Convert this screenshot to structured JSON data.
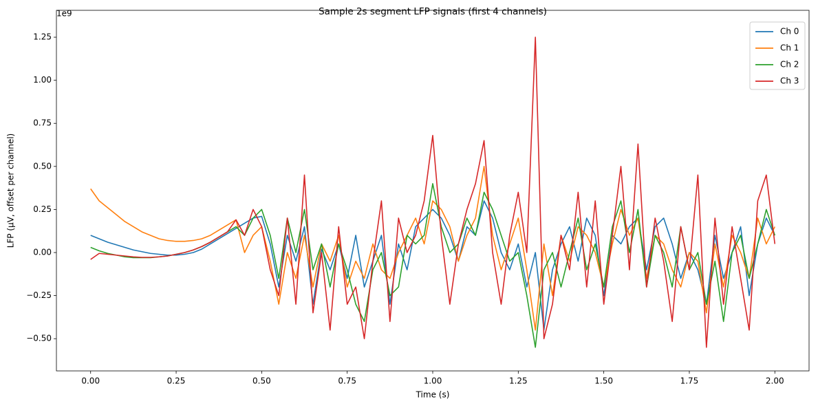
{
  "chart_data": {
    "type": "line",
    "title": "Sample 2s segment LFP signals (first 4 channels)",
    "x_label": "Time (s)",
    "y_label": "LFP (µV, offset per channel)",
    "y_offset_label": "1e9",
    "legend": "upper right",
    "xlim": [
      -0.1,
      2.1
    ],
    "ylim": [
      -0.687,
      1.406
    ],
    "xticks": [
      {
        "value": 0,
        "label": "0.00"
      },
      {
        "value": 0.25,
        "label": "0.25"
      },
      {
        "value": 0.5,
        "label": "0.50"
      },
      {
        "value": 0.75,
        "label": "0.75"
      },
      {
        "value": 1,
        "label": "1.00"
      },
      {
        "value": 1.25,
        "label": "1.25"
      },
      {
        "value": 1.5,
        "label": "1.50"
      },
      {
        "value": 1.75,
        "label": "1.75"
      },
      {
        "value": 2,
        "label": "2.00"
      }
    ],
    "yticks": [
      {
        "value": -0.5,
        "label": "−0.50"
      },
      {
        "value": -0.25,
        "label": "−0.25"
      },
      {
        "value": 0,
        "label": "0.00"
      },
      {
        "value": 0.25,
        "label": "0.25"
      },
      {
        "value": 0.5,
        "label": "0.50"
      },
      {
        "value": 0.75,
        "label": "0.75"
      },
      {
        "value": 1,
        "label": "1.00"
      },
      {
        "value": 1.25,
        "label": "1.25"
      }
    ],
    "x": [
      0,
      0.025,
      0.05,
      0.075,
      0.1,
      0.125,
      0.15,
      0.175,
      0.2,
      0.225,
      0.25,
      0.275,
      0.3,
      0.325,
      0.35,
      0.375,
      0.4,
      0.425,
      0.45,
      0.475,
      0.5,
      0.525,
      0.55,
      0.575,
      0.6,
      0.625,
      0.65,
      0.675,
      0.7,
      0.725,
      0.75,
      0.775,
      0.8,
      0.825,
      0.85,
      0.875,
      0.9,
      0.925,
      0.95,
      0.975,
      1,
      1.025,
      1.05,
      1.075,
      1.1,
      1.125,
      1.15,
      1.175,
      1.2,
      1.225,
      1.25,
      1.275,
      1.3,
      1.325,
      1.35,
      1.375,
      1.4,
      1.425,
      1.45,
      1.475,
      1.5,
      1.525,
      1.55,
      1.575,
      1.6,
      1.625,
      1.65,
      1.675,
      1.7,
      1.725,
      1.75,
      1.775,
      1.8,
      1.825,
      1.85,
      1.875,
      1.9,
      1.925,
      1.95,
      1.975,
      2
    ],
    "series": [
      {
        "name": "Ch 0",
        "color": "#1f77b4",
        "values": [
          0.1,
          0.08,
          0.06,
          0.045,
          0.03,
          0.015,
          0.005,
          -0.005,
          -0.01,
          -0.015,
          -0.015,
          -0.01,
          0,
          0.02,
          0.05,
          0.08,
          0.11,
          0.14,
          0.17,
          0.2,
          0.21,
          0.05,
          -0.2,
          0.1,
          -0.05,
          0.15,
          -0.3,
          0.02,
          -0.1,
          0.05,
          -0.15,
          0.1,
          -0.2,
          -0.05,
          0.1,
          -0.3,
          0.05,
          -0.1,
          0.15,
          0.2,
          0.25,
          0.2,
          0.1,
          -0.05,
          0.15,
          0.1,
          0.3,
          0.2,
          0,
          -0.1,
          0.05,
          -0.2,
          0,
          -0.45,
          -0.1,
          0.05,
          0.15,
          -0.05,
          0.2,
          0.1,
          -0.25,
          0.1,
          0.05,
          0.15,
          0.2,
          -0.1,
          0.15,
          0.2,
          0.05,
          -0.15,
          0,
          -0.1,
          -0.3,
          0.1,
          -0.15,
          0,
          0.15,
          -0.25,
          0.05,
          0.2,
          0.1
        ]
      },
      {
        "name": "Ch 1",
        "color": "#ff7f0e",
        "values": [
          0.37,
          0.3,
          0.26,
          0.22,
          0.18,
          0.15,
          0.12,
          0.1,
          0.08,
          0.07,
          0.065,
          0.065,
          0.07,
          0.08,
          0.1,
          0.13,
          0.16,
          0.19,
          0,
          0.1,
          0.15,
          -0.05,
          -0.3,
          0,
          -0.15,
          0.1,
          -0.2,
          0.05,
          -0.05,
          0.1,
          -0.2,
          -0.05,
          -0.15,
          0.05,
          -0.1,
          -0.15,
          0,
          0.1,
          0.2,
          0.05,
          0.3,
          0.25,
          0.15,
          -0.05,
          0.1,
          0.2,
          0.5,
          0.1,
          -0.1,
          0.05,
          0.2,
          -0.1,
          -0.45,
          0.05,
          -0.25,
          0.1,
          -0.05,
          0.15,
          0.1,
          0,
          -0.2,
          0.05,
          0.25,
          0.1,
          0.2,
          -0.15,
          0.1,
          0.05,
          -0.1,
          -0.2,
          0,
          -0.05,
          -0.35,
          0.05,
          -0.2,
          0.1,
          0,
          -0.15,
          0.2,
          0.05,
          0.15
        ]
      },
      {
        "name": "Ch 2",
        "color": "#2ca02c",
        "values": [
          0.03,
          0.01,
          -0.005,
          -0.015,
          -0.025,
          -0.03,
          -0.03,
          -0.03,
          -0.025,
          -0.02,
          -0.01,
          0,
          0.015,
          0.035,
          0.06,
          0.09,
          0.12,
          0.15,
          0.1,
          0.2,
          0.25,
          0.1,
          -0.15,
          0.2,
          0,
          0.25,
          -0.1,
          0.05,
          -0.2,
          0.05,
          -0.1,
          -0.3,
          -0.4,
          -0.1,
          0,
          -0.25,
          -0.2,
          0.1,
          0.05,
          0.1,
          0.4,
          0.15,
          0,
          0.05,
          0.2,
          0.1,
          0.35,
          0.25,
          0.1,
          -0.05,
          0,
          -0.25,
          -0.55,
          -0.1,
          0,
          -0.2,
          0,
          0.2,
          -0.1,
          0.05,
          -0.2,
          0.15,
          0.3,
          0,
          0.25,
          -0.2,
          0.1,
          0,
          -0.2,
          0.15,
          -0.1,
          0,
          -0.3,
          -0.05,
          -0.4,
          0,
          0.1,
          -0.15,
          0.05,
          0.25,
          0.1
        ]
      },
      {
        "name": "Ch 3",
        "color": "#d62728",
        "values": [
          -0.04,
          -0.005,
          -0.01,
          -0.015,
          -0.02,
          -0.025,
          -0.028,
          -0.028,
          -0.025,
          -0.02,
          -0.01,
          0,
          0.015,
          0.035,
          0.06,
          0.09,
          0.12,
          0.19,
          0.1,
          0.25,
          0.15,
          -0.1,
          -0.25,
          0.2,
          -0.3,
          0.45,
          -0.35,
          0,
          -0.45,
          0.15,
          -0.3,
          -0.2,
          -0.5,
          -0.05,
          0.3,
          -0.4,
          0.2,
          0,
          0.1,
          0.3,
          0.68,
          0.1,
          -0.3,
          0.05,
          0.25,
          0.4,
          0.65,
          0,
          -0.3,
          0.1,
          0.35,
          0,
          1.25,
          -0.5,
          -0.3,
          0.1,
          -0.1,
          0.35,
          -0.2,
          0.3,
          -0.3,
          0.1,
          0.5,
          -0.1,
          0.63,
          -0.2,
          0.2,
          -0.05,
          -0.4,
          0.15,
          -0.1,
          0.45,
          -0.55,
          0.2,
          -0.3,
          0.15,
          -0.15,
          -0.45,
          0.3,
          0.45,
          0.05
        ]
      }
    ]
  }
}
